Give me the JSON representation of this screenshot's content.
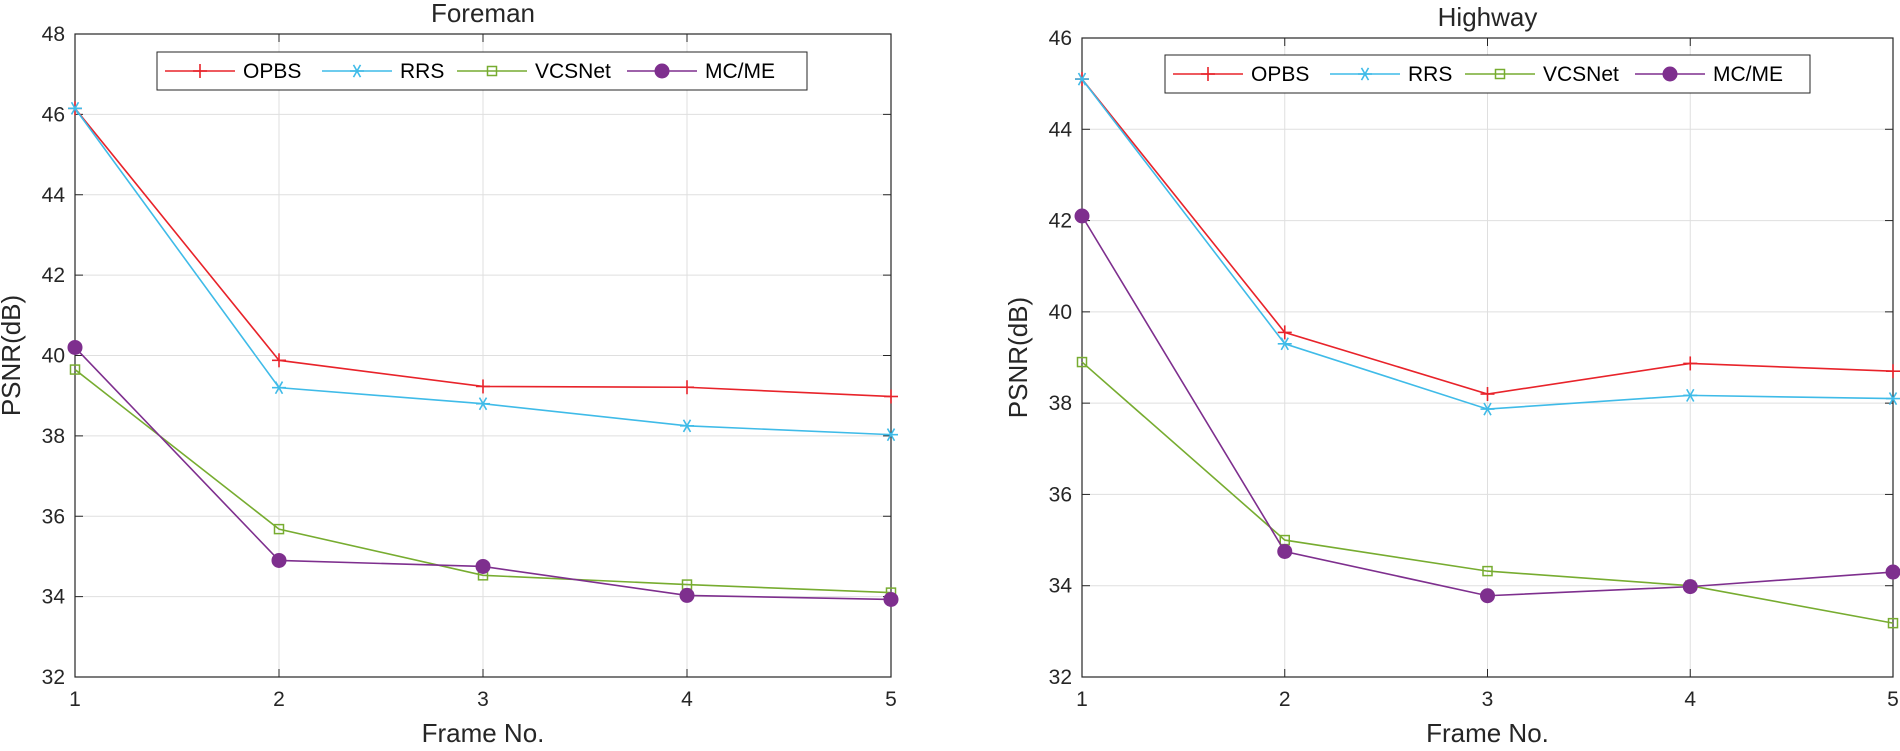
{
  "chart_data": [
    {
      "type": "line",
      "title": "Foreman",
      "xlabel": "Frame No.",
      "ylabel": "PSNR(dB)",
      "x": [
        1,
        2,
        3,
        4,
        5
      ],
      "xlim": [
        1,
        5
      ],
      "ylim": [
        32,
        48
      ],
      "yticks": [
        32,
        34,
        36,
        38,
        40,
        42,
        44,
        46,
        48
      ],
      "grid": true,
      "legend": "top, horizontal",
      "series": [
        {
          "name": "OPBS",
          "color": "#e8232a",
          "marker": "plus",
          "values": [
            46.15,
            39.88,
            39.23,
            39.21,
            38.98
          ]
        },
        {
          "name": "RRS",
          "color": "#3fbbe8",
          "marker": "asterisk",
          "values": [
            46.15,
            39.2,
            38.8,
            38.25,
            38.03
          ]
        },
        {
          "name": "VCSNet",
          "color": "#77ac30",
          "marker": "square",
          "values": [
            39.65,
            35.68,
            34.53,
            34.3,
            34.1
          ]
        },
        {
          "name": "MC/ME",
          "color": "#7e2f8e",
          "marker": "circle",
          "values": [
            40.2,
            34.9,
            34.75,
            34.03,
            33.93
          ]
        }
      ]
    },
    {
      "type": "line",
      "title": "Highway",
      "xlabel": "Frame No.",
      "ylabel": "PSNR(dB)",
      "x": [
        1,
        2,
        3,
        4,
        5
      ],
      "xlim": [
        1,
        5
      ],
      "ylim": [
        32,
        46
      ],
      "yticks": [
        32,
        34,
        36,
        38,
        40,
        42,
        44,
        46
      ],
      "grid": true,
      "legend": "top, horizontal",
      "series": [
        {
          "name": "OPBS",
          "color": "#e8232a",
          "marker": "plus",
          "values": [
            45.1,
            39.55,
            38.2,
            38.87,
            38.7
          ]
        },
        {
          "name": "RRS",
          "color": "#3fbbe8",
          "marker": "asterisk",
          "values": [
            45.1,
            39.3,
            37.87,
            38.17,
            38.1
          ]
        },
        {
          "name": "VCSNet",
          "color": "#77ac30",
          "marker": "square",
          "values": [
            38.9,
            35.0,
            34.32,
            34.0,
            33.18
          ]
        },
        {
          "name": "MC/ME",
          "color": "#7e2f8e",
          "marker": "circle",
          "values": [
            42.1,
            34.75,
            33.78,
            33.98,
            34.3
          ]
        }
      ]
    }
  ]
}
